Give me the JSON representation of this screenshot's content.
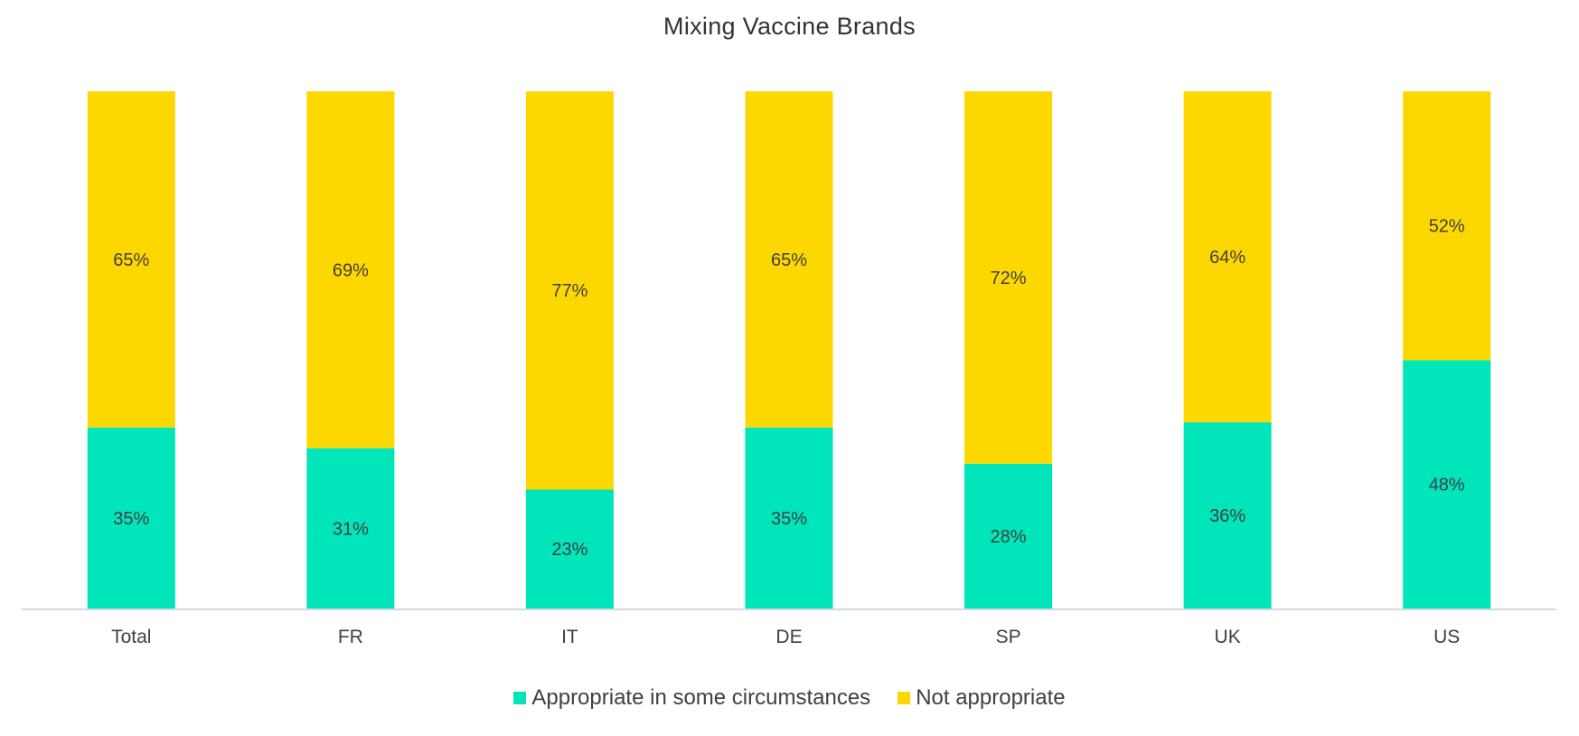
{
  "chart_data": {
    "type": "bar",
    "stacked": true,
    "title": "Mixing Vaccine Brands",
    "xlabel": "",
    "ylabel": "",
    "ylim": [
      0,
      100
    ],
    "grid": false,
    "legend_position": "bottom",
    "categories": [
      "Total",
      "FR",
      "IT",
      "DE",
      "SP",
      "UK",
      "US"
    ],
    "series": [
      {
        "name": "Appropriate in some circumstances",
        "color": "#00E5BA",
        "values": [
          35,
          31,
          23,
          35,
          28,
          36,
          48
        ],
        "labels": [
          "35%",
          "31%",
          "23%",
          "35%",
          "28%",
          "36%",
          "48%"
        ]
      },
      {
        "name": "Not appropriate",
        "color": "#FDD800",
        "values": [
          65,
          69,
          77,
          65,
          72,
          64,
          52
        ],
        "labels": [
          "65%",
          "69%",
          "77%",
          "65%",
          "72%",
          "64%",
          "52%"
        ]
      }
    ]
  }
}
